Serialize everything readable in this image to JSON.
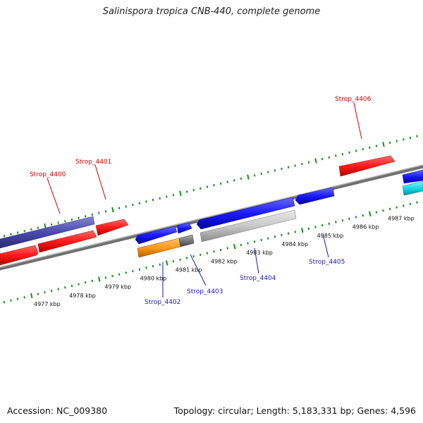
{
  "title": "Salinispora tropica CNB-440, complete genome",
  "footer": {
    "accession": "Accession: NC_009380",
    "summary": "Topology: circular; Length: 5,183,331 bp; Genes: 4,596"
  },
  "scale_labels": [
    "4977 kbp",
    "4978 kbp",
    "4979 kbp",
    "4980 kbp",
    "4981 kbp",
    "4982 kbp",
    "4983 kbp",
    "4984 kbp",
    "4985 kbp",
    "4986 kbp",
    "4987 kbp"
  ],
  "gene_labels_forward": [
    {
      "name": "Strop_4400"
    },
    {
      "name": "Strop_4401"
    },
    {
      "name": "Strop_4406"
    }
  ],
  "gene_labels_reverse": [
    {
      "name": "Strop_4402"
    },
    {
      "name": "Strop_4403"
    },
    {
      "name": "Strop_4404"
    },
    {
      "name": "Strop_4405"
    }
  ],
  "colors": {
    "forward_gene": "#ff1a1a",
    "reverse_gene": "#1a1aff",
    "purple_gene": "#4b4bb0",
    "orange_gene": "#ff9a1a",
    "grey_gene": "#7a7a7a",
    "light_grey_gene": "#c8c8c8",
    "cyan_gene": "#19d9e6",
    "tick": "#1e8c1e",
    "backbone": "#8a8a8a"
  }
}
